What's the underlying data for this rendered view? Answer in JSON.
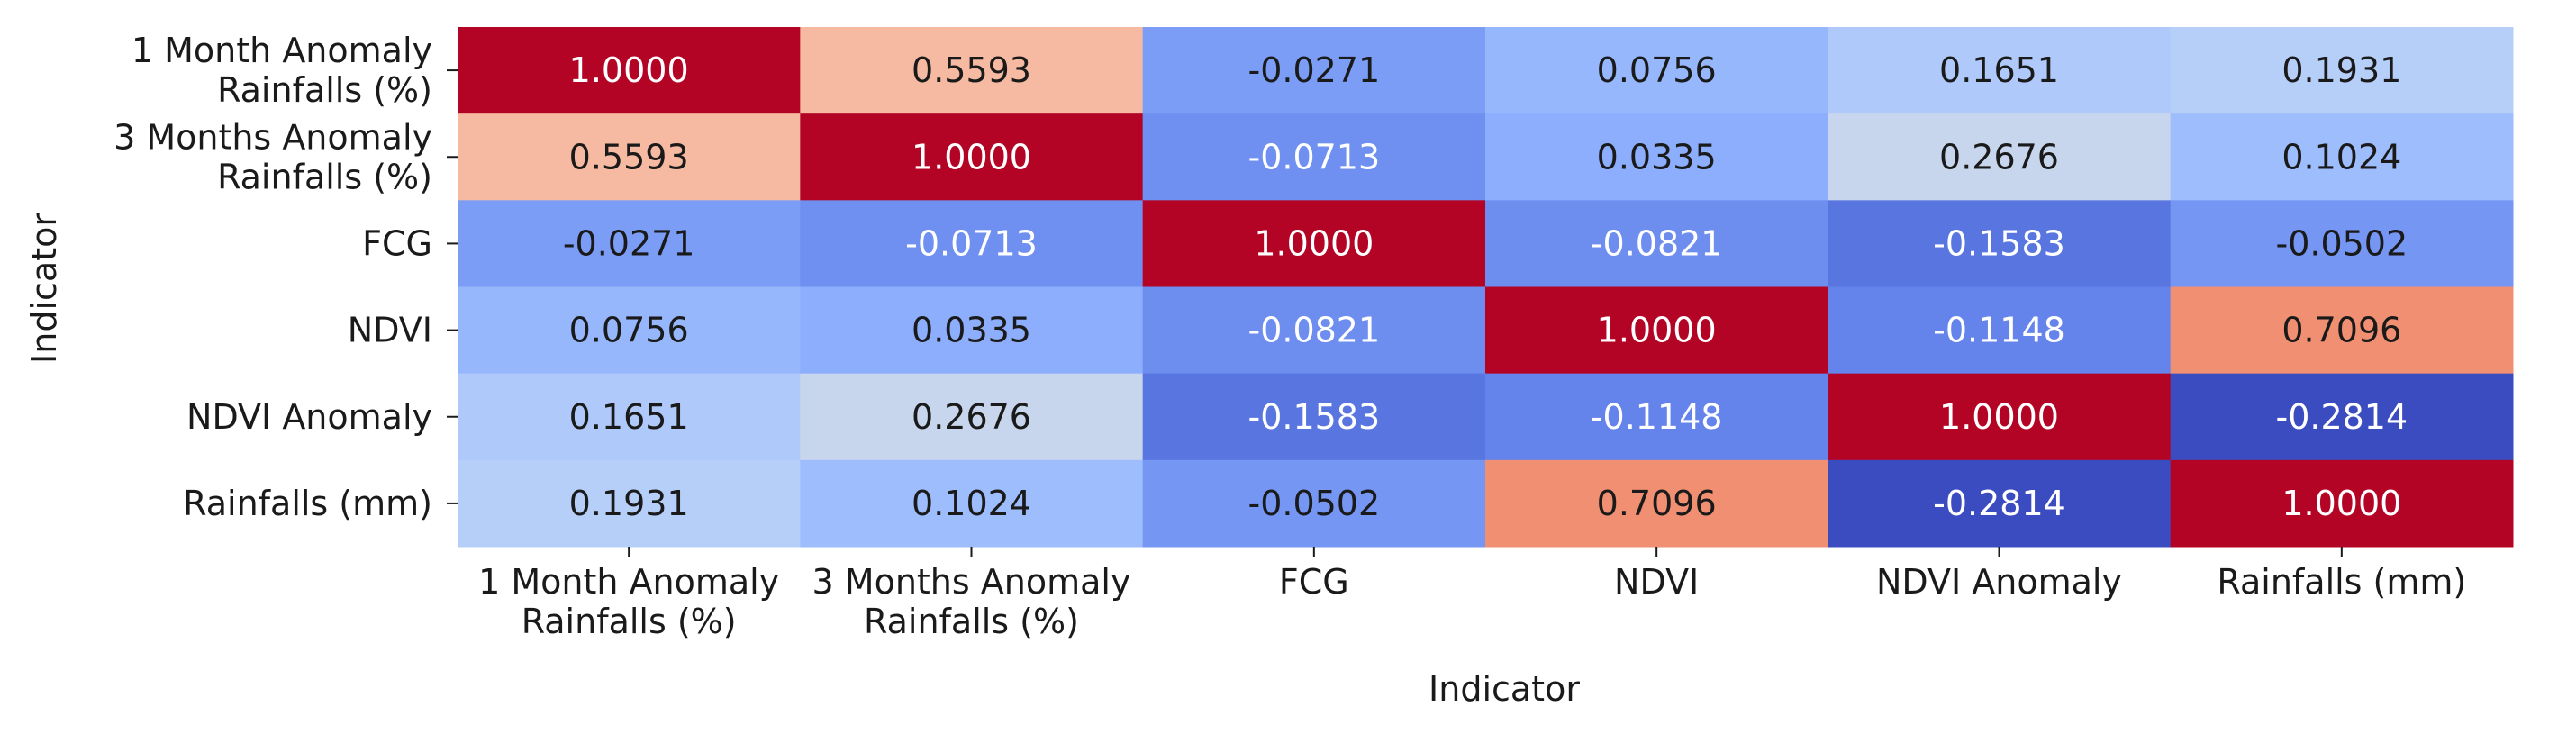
{
  "chart_data": {
    "type": "heatmap",
    "xlabel": "Indicator",
    "ylabel": "Indicator",
    "x_categories": [
      [
        "1 Month Anomaly",
        "Rainfalls (%)"
      ],
      [
        "3 Months Anomaly",
        "Rainfalls (%)"
      ],
      [
        "FCG"
      ],
      [
        "NDVI"
      ],
      [
        "NDVI Anomaly"
      ],
      [
        "Rainfalls (mm)"
      ]
    ],
    "y_categories": [
      [
        "1 Month Anomaly",
        "Rainfalls (%)"
      ],
      [
        "3 Months Anomaly",
        "Rainfalls (%)"
      ],
      [
        "FCG"
      ],
      [
        "NDVI"
      ],
      [
        "NDVI Anomaly"
      ],
      [
        "Rainfalls (mm)"
      ]
    ],
    "values": [
      [
        1.0,
        0.5593,
        -0.0271,
        0.0756,
        0.1651,
        0.1931
      ],
      [
        0.5593,
        1.0,
        -0.0713,
        0.0335,
        0.2676,
        0.1024
      ],
      [
        -0.0271,
        -0.0713,
        1.0,
        -0.0821,
        -0.1583,
        -0.0502
      ],
      [
        0.0756,
        0.0335,
        -0.0821,
        1.0,
        -0.1148,
        0.7096
      ],
      [
        0.1651,
        0.2676,
        -0.1583,
        -0.1148,
        1.0,
        -0.2814
      ],
      [
        0.1931,
        0.1024,
        -0.0502,
        0.7096,
        -0.2814,
        1.0
      ]
    ],
    "value_format": "0.0000",
    "colormap": "coolwarm",
    "vmin": -0.2814,
    "vmax": 1.0,
    "colorbar": false
  }
}
